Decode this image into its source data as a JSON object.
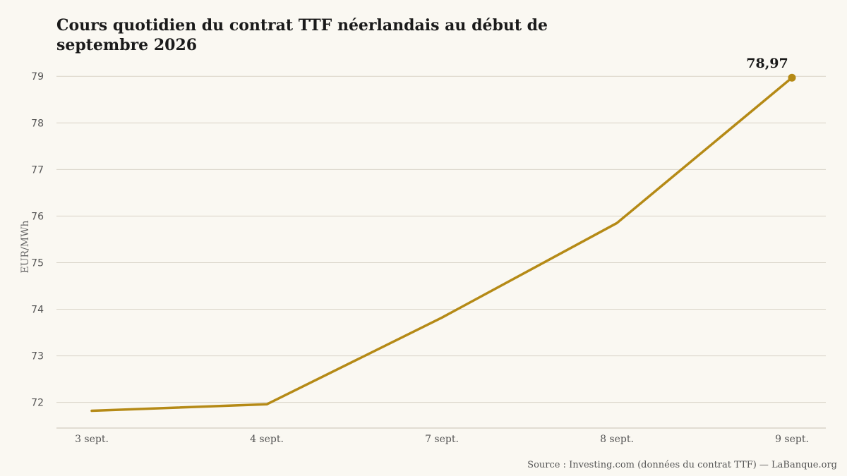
{
  "chart_data": {
    "type": "line",
    "title": "Cours quotidien du contrat TTF néerlandais au début de septembre 2026",
    "ylabel": "EUR/MWh",
    "xlabel": "",
    "categories": [
      "3 sept.",
      "4 sept.",
      "7 sept.",
      "8 sept.",
      "9 sept."
    ],
    "series": [
      {
        "values": [
          71.82,
          71.96,
          73.82,
          75.85,
          78.97
        ]
      }
    ],
    "yticks": [
      "72",
      "73",
      "74",
      "75",
      "76",
      "77",
      "78",
      "79"
    ],
    "ylim": [
      71.45,
      79.2
    ],
    "grid": true,
    "annotations": [
      {
        "index": 4,
        "label": "78,97"
      }
    ],
    "source": "Source : Investing.com (données du contrat TTF) — LaBanque.org",
    "colors": {
      "line": "#b58a16",
      "grid": "#d9d4c8",
      "axis": "#c8c2b4",
      "background": "#faf8f2"
    }
  }
}
